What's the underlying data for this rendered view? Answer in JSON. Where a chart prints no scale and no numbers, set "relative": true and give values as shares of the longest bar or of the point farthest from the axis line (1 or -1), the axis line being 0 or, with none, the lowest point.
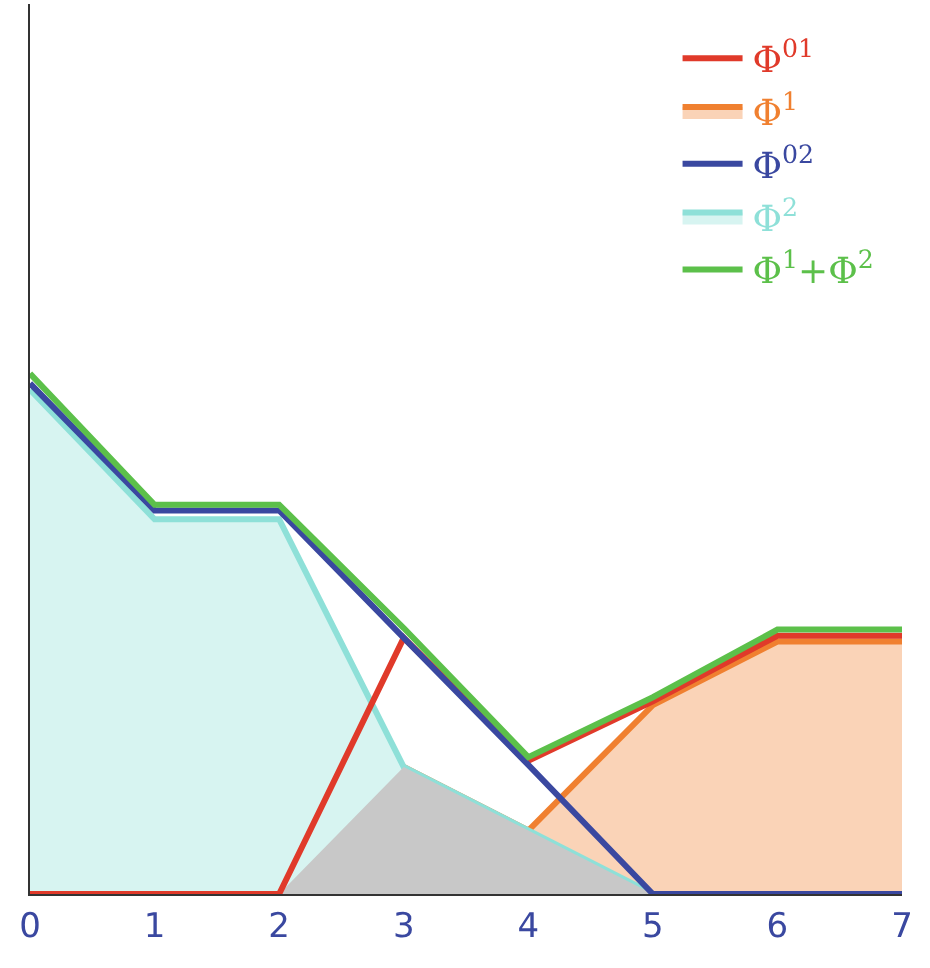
{
  "chart_data": {
    "type": "line",
    "relative": true,
    "x": [
      0,
      1,
      2,
      3,
      4,
      5,
      6,
      7
    ],
    "xlim": [
      0,
      7
    ],
    "xticks": [
      0,
      1,
      2,
      3,
      4,
      5,
      6,
      7
    ],
    "series": [
      {
        "name": "Φ$^{01}$",
        "color": "#e03a2a",
        "values": [
          0,
          0,
          0,
          0.492,
          0.256,
          0.37,
          0.496,
          0.496
        ]
      },
      {
        "name": "Φ$^{1}$",
        "type": "area",
        "color": "#f08030",
        "values": [
          0,
          0,
          0,
          0.244,
          0.122,
          0.363,
          0.485,
          0.485
        ]
      },
      {
        "name": "Φ$^{02}$",
        "color": "#3a48a0",
        "values": [
          0.981,
          0.737,
          0.737,
          0.492,
          0.248,
          0,
          0,
          0
        ]
      },
      {
        "name": "Φ$^{2}$",
        "type": "area",
        "color": "#8ee0d8",
        "values": [
          0.969,
          0.72,
          0.72,
          0.244,
          0.122,
          0,
          0,
          0
        ]
      },
      {
        "name": "Φ$^{1}$+Φ$^{2}$",
        "color": "#5cc04a",
        "values": [
          1,
          0.748,
          0.748,
          0.511,
          0.263,
          0.378,
          0.508,
          0.508
        ]
      },
      {
        "type": "area",
        "color": "#c8c8c8",
        "values": [
          0,
          0,
          0,
          0.244,
          0.122,
          0,
          0,
          0
        ]
      }
    ],
    "legend": "top right",
    "grid": false
  }
}
